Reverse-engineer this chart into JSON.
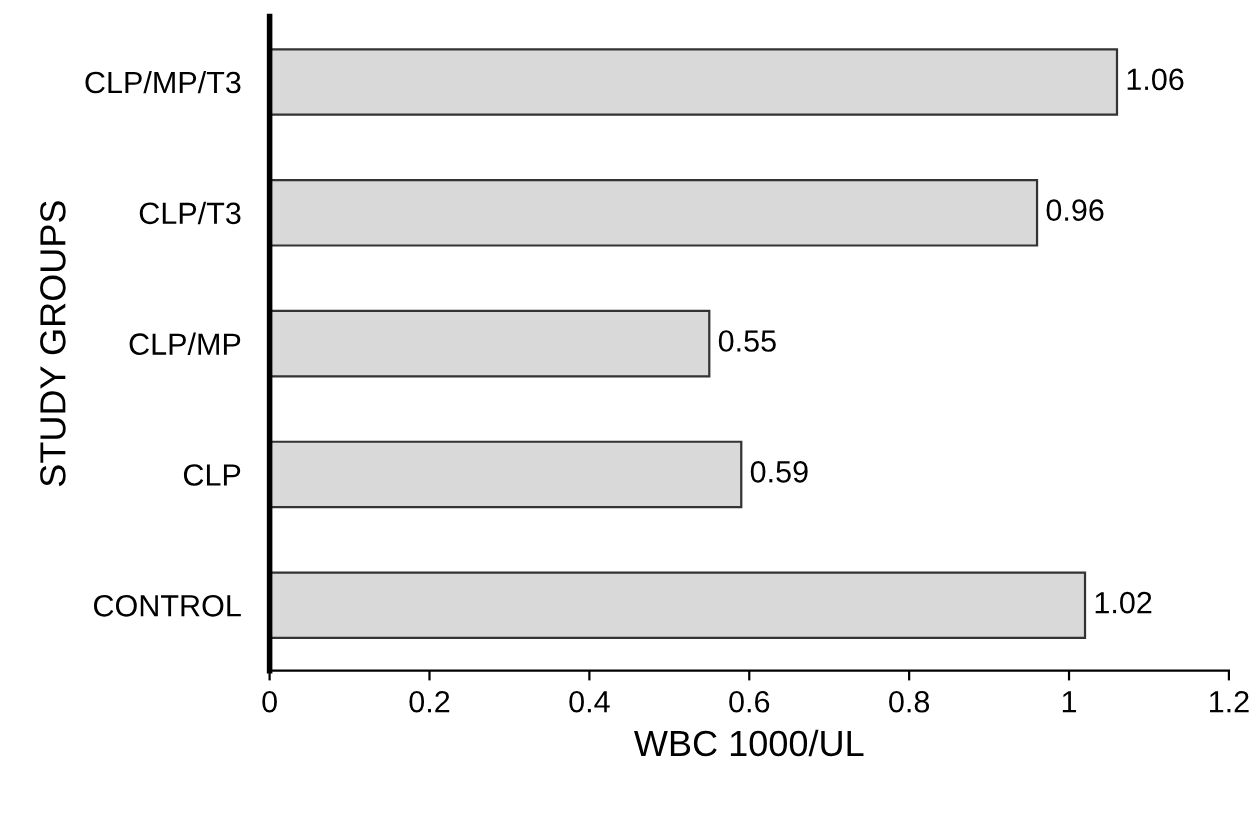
{
  "chart_data": {
    "type": "bar",
    "orientation": "horizontal",
    "xlabel": "WBC 1000/UL",
    "ylabel": "STUDY GROUPS",
    "categories": [
      "CLP/MP/T3",
      "CLP/T3",
      "CLP/MP",
      "CLP",
      "CONTROL"
    ],
    "values": [
      1.06,
      0.96,
      0.55,
      0.59,
      1.02
    ],
    "color": "#d9d9d9",
    "xlim": [
      0,
      1.2
    ],
    "xticks": [
      0,
      0.2,
      0.4,
      0.6,
      0.8,
      1,
      1.2
    ],
    "data_labels": true,
    "grid": false,
    "legend": false
  }
}
